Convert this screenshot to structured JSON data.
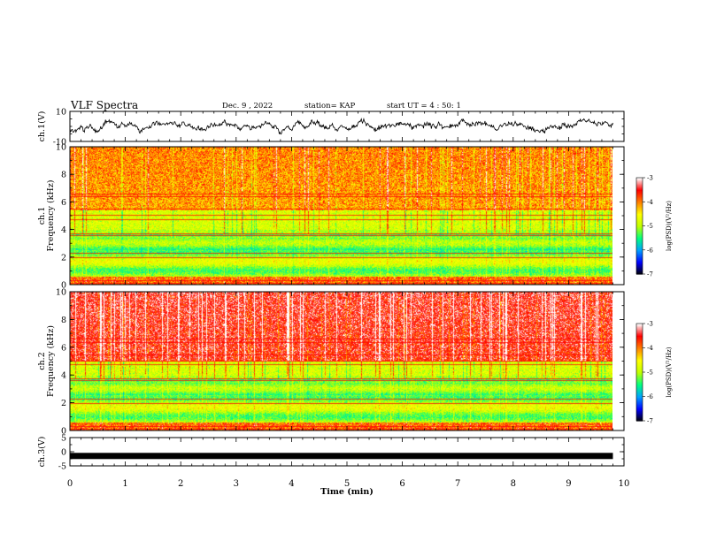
{
  "header": {
    "title": "VLF Spectra",
    "date": "Dec. 9 , 2022",
    "station": "station= KAP",
    "start_ut": "start  UT =  4 : 50: 1"
  },
  "colors": {
    "colormap": [
      "#000000",
      "#0000ff",
      "#00a0ff",
      "#00ff80",
      "#c0ff00",
      "#ffff00",
      "#ff8000",
      "#ff0000",
      "#ffffff"
    ],
    "trace": "#000000",
    "axis": "#000000"
  },
  "chart_data": [
    {
      "type": "line",
      "title": "",
      "ylabel": "ch.1(V)",
      "xlabel": "",
      "xlim": [
        0,
        10
      ],
      "ylim": [
        -10,
        10
      ],
      "y_ticks": [
        "10",
        "-10"
      ],
      "series": [
        {
          "description_note": "",
          "values_range": [
            -6,
            5
          ]
        }
      ],
      "data_end_min": 9.8
    },
    {
      "type": "heatmap",
      "channel": "ch.1",
      "ylabel_channel": "ch.1",
      "ylabel": "Frequency (kHz)",
      "xlim": [
        0,
        10
      ],
      "ylim": [
        0,
        10
      ],
      "y_ticks": [
        "0",
        "2",
        "4",
        "6",
        "8",
        "10"
      ],
      "colorbar": {
        "label": "log(PSD)(V²/Hz)",
        "range": [
          -7,
          -3
        ],
        "ticks": [
          "-3",
          "-4",
          "-5",
          "-6",
          "-7"
        ]
      },
      "bands_khz": {
        "low_green": [
          0.6,
          3.7
        ],
        "mid_band": [
          3.7,
          5.4
        ],
        "upper": [
          5.4,
          10.0
        ]
      },
      "level_upper": -4.0
    },
    {
      "type": "heatmap",
      "channel": "ch.2",
      "ylabel_channel": "ch.2",
      "ylabel": "Frequency (kHz)",
      "xlim": [
        0,
        10
      ],
      "ylim": [
        0,
        10
      ],
      "y_ticks": [
        "0",
        "2",
        "4",
        "6",
        "8",
        "10"
      ],
      "colorbar": {
        "label": "log(PSD)(V²/Hz)",
        "range": [
          -7,
          -3
        ],
        "ticks": [
          "-3",
          "-4",
          "-5",
          "-6",
          "-7"
        ]
      },
      "bands_khz": {
        "low_green": [
          0.6,
          3.7
        ],
        "mid_band": [
          3.7,
          5.0
        ],
        "upper": [
          5.0,
          10.0
        ]
      },
      "level_upper": -3.4
    },
    {
      "type": "line",
      "ylabel": "ch.3(V)",
      "xlabel": "Time (min)",
      "xlim": [
        0,
        10
      ],
      "ylim": [
        -5,
        5
      ],
      "y_ticks": [
        "5",
        "0",
        "-5"
      ],
      "x_ticks": [
        "0",
        "1",
        "2",
        "3",
        "4",
        "5",
        "6",
        "7",
        "8",
        "9",
        "10"
      ],
      "series": [
        {
          "values_constant": -1.5
        }
      ],
      "data_end_min": 9.8
    }
  ]
}
